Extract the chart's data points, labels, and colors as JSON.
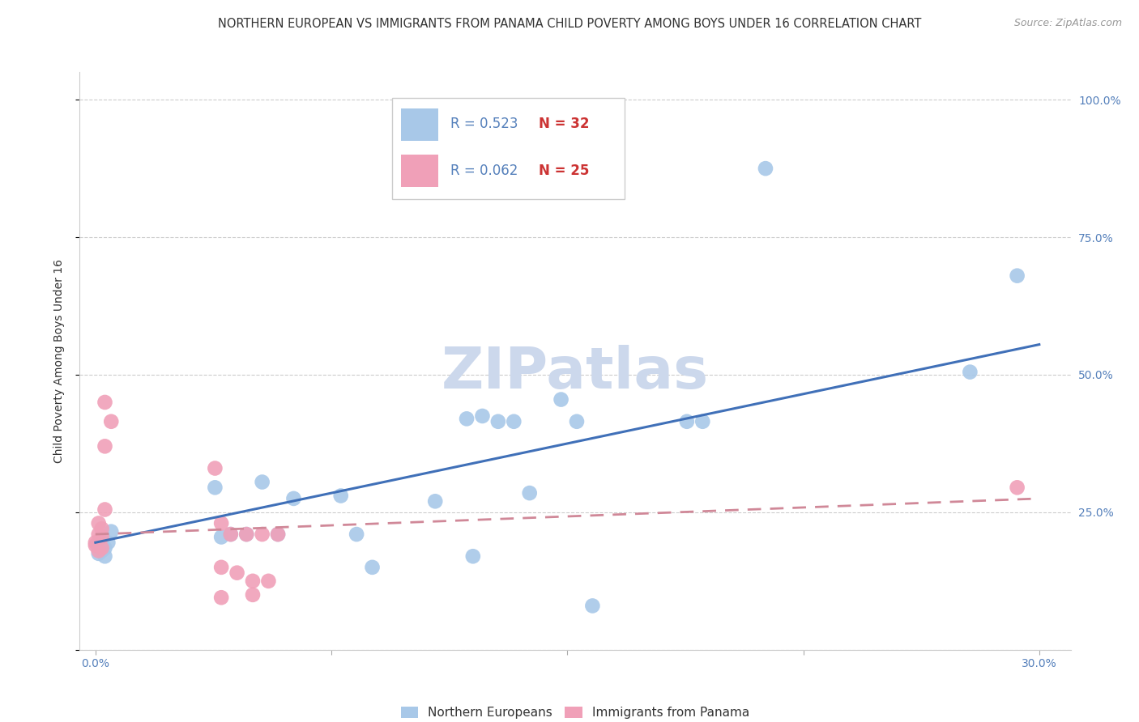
{
  "title": "NORTHERN EUROPEAN VS IMMIGRANTS FROM PANAMA CHILD POVERTY AMONG BOYS UNDER 16 CORRELATION CHART",
  "source": "Source: ZipAtlas.com",
  "ylabel": "Child Poverty Among Boys Under 16",
  "y_ticks": [
    0.0,
    0.25,
    0.5,
    0.75,
    1.0
  ],
  "y_tick_labels": [
    "",
    "25.0%",
    "50.0%",
    "75.0%",
    "100.0%"
  ],
  "x_ticks": [
    0.0,
    0.075,
    0.15,
    0.225,
    0.3
  ],
  "x_tick_labels": [
    "0.0%",
    "",
    "",
    "",
    "30.0%"
  ],
  "xlim": [
    -0.005,
    0.31
  ],
  "ylim": [
    0.0,
    1.05
  ],
  "watermark": "ZIPatlas",
  "legend_blue_R": "R = 0.523",
  "legend_blue_N": "N = 32",
  "legend_pink_R": "R = 0.062",
  "legend_pink_N": "N = 25",
  "blue_color": "#a8c8e8",
  "pink_color": "#f0a0b8",
  "blue_line_color": "#4070b8",
  "pink_line_color": "#d08898",
  "blue_scatter": [
    [
      0.001,
      0.19
    ],
    [
      0.001,
      0.175
    ],
    [
      0.002,
      0.18
    ],
    [
      0.003,
      0.185
    ],
    [
      0.003,
      0.17
    ],
    [
      0.004,
      0.195
    ],
    [
      0.005,
      0.215
    ],
    [
      0.038,
      0.295
    ],
    [
      0.04,
      0.205
    ],
    [
      0.043,
      0.21
    ],
    [
      0.048,
      0.21
    ],
    [
      0.053,
      0.305
    ],
    [
      0.058,
      0.21
    ],
    [
      0.063,
      0.275
    ],
    [
      0.078,
      0.28
    ],
    [
      0.083,
      0.21
    ],
    [
      0.088,
      0.15
    ],
    [
      0.108,
      0.27
    ],
    [
      0.118,
      0.42
    ],
    [
      0.12,
      0.17
    ],
    [
      0.123,
      0.425
    ],
    [
      0.128,
      0.415
    ],
    [
      0.133,
      0.415
    ],
    [
      0.138,
      0.285
    ],
    [
      0.148,
      0.455
    ],
    [
      0.153,
      0.415
    ],
    [
      0.158,
      0.08
    ],
    [
      0.188,
      0.415
    ],
    [
      0.193,
      0.415
    ],
    [
      0.213,
      0.875
    ],
    [
      0.278,
      0.505
    ],
    [
      0.293,
      0.68
    ]
  ],
  "pink_scatter": [
    [
      0.0,
      0.19
    ],
    [
      0.0,
      0.195
    ],
    [
      0.001,
      0.21
    ],
    [
      0.001,
      0.23
    ],
    [
      0.001,
      0.18
    ],
    [
      0.002,
      0.22
    ],
    [
      0.002,
      0.205
    ],
    [
      0.002,
      0.185
    ],
    [
      0.003,
      0.45
    ],
    [
      0.003,
      0.37
    ],
    [
      0.003,
      0.255
    ],
    [
      0.005,
      0.415
    ],
    [
      0.038,
      0.33
    ],
    [
      0.04,
      0.23
    ],
    [
      0.04,
      0.15
    ],
    [
      0.04,
      0.095
    ],
    [
      0.043,
      0.21
    ],
    [
      0.045,
      0.14
    ],
    [
      0.048,
      0.21
    ],
    [
      0.05,
      0.125
    ],
    [
      0.05,
      0.1
    ],
    [
      0.053,
      0.21
    ],
    [
      0.055,
      0.125
    ],
    [
      0.058,
      0.21
    ],
    [
      0.293,
      0.295
    ]
  ],
  "blue_line_x": [
    0.0,
    0.3
  ],
  "blue_line_y": [
    0.195,
    0.555
  ],
  "pink_line_x": [
    0.0,
    0.3
  ],
  "pink_line_y": [
    0.21,
    0.275
  ],
  "title_fontsize": 10.5,
  "source_fontsize": 9,
  "axis_label_fontsize": 10,
  "tick_fontsize": 10,
  "watermark_fontsize": 52,
  "watermark_color": "#ccd8ec",
  "background_color": "#ffffff",
  "grid_color": "#cccccc",
  "legend_label_blue": "Northern Europeans",
  "legend_label_pink": "Immigrants from Panama"
}
